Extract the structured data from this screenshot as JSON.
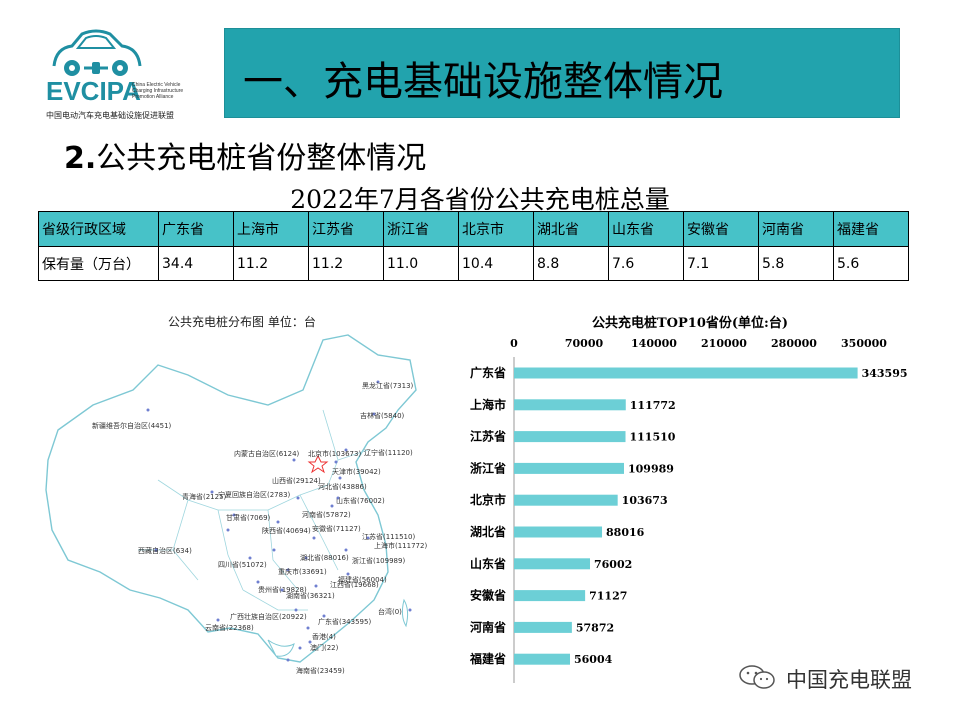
{
  "logo": {
    "name": "EVCIPA",
    "subtitle_lines": [
      "China Electric Vehicle",
      "Charging Infrastructure",
      "Promotion Alliance"
    ],
    "cn_name": "中国电动汽车充电基础设施促进联盟",
    "accent": "#1f8fa2"
  },
  "banner": {
    "title": "一、充电基础设施整体情况",
    "color": "#22a3ad"
  },
  "section": {
    "number": "2.",
    "title": "公共充电桩省份整体情况"
  },
  "table": {
    "title": "2022年7月各省份公共充电桩总量",
    "header_color": "#47c2c8",
    "row_label_1": "省级行政区域",
    "row_label_2": "保有量（万台）",
    "provinces": [
      "广东省",
      "上海市",
      "江苏省",
      "浙江省",
      "北京市",
      "湖北省",
      "山东省",
      "安徽省",
      "河南省",
      "福建省"
    ],
    "values": [
      "34.4",
      "11.2",
      "11.2",
      "11.0",
      "10.4",
      "8.8",
      "7.6",
      "7.1",
      "5.8",
      "5.6"
    ]
  },
  "map": {
    "title": "公共充电桩分布图  单位：台",
    "labels": [
      {
        "text": "新疆维吾尔自治区(4451)"
      },
      {
        "text": "西藏自治区(634)"
      },
      {
        "text": "青海省(2125)"
      },
      {
        "text": "甘肃省(7069)"
      },
      {
        "text": "内蒙古自治区(6124)"
      },
      {
        "text": "宁夏回族自治区(2783)"
      },
      {
        "text": "四川省(51072)"
      },
      {
        "text": "云南省(22368)"
      },
      {
        "text": "黑龙江省(7313)"
      },
      {
        "text": "吉林省(5840)"
      },
      {
        "text": "辽宁省(11120)"
      },
      {
        "text": "北京市(103673)"
      },
      {
        "text": "天津市(39042)"
      },
      {
        "text": "山西省(29124)"
      },
      {
        "text": "河北省(43886)"
      },
      {
        "text": "山东省(76002)"
      },
      {
        "text": "陕西省(40694)"
      },
      {
        "text": "河南省(57872)"
      },
      {
        "text": "安徽省(71127)"
      },
      {
        "text": "江苏省(111510)"
      },
      {
        "text": "上海市(111772)"
      },
      {
        "text": "湖北省(88016)"
      },
      {
        "text": "重庆市(33691)"
      },
      {
        "text": "浙江省(109989)"
      },
      {
        "text": "贵州省(19828)"
      },
      {
        "text": "湖南省(36321)"
      },
      {
        "text": "江西省(19668)"
      },
      {
        "text": "福建省(56004)"
      },
      {
        "text": "广西壮族自治区(20922)"
      },
      {
        "text": "广东省(343595)"
      },
      {
        "text": "香港(4)"
      },
      {
        "text": "澳门(22)"
      },
      {
        "text": "台湾(0)"
      },
      {
        "text": "海南省(23459)"
      }
    ]
  },
  "chart_data": {
    "type": "bar",
    "orientation": "horizontal",
    "title": "公共充电桩TOP10省份(单位:台)",
    "categories": [
      "广东省",
      "上海市",
      "江苏省",
      "浙江省",
      "北京市",
      "湖北省",
      "山东省",
      "安徽省",
      "河南省",
      "福建省"
    ],
    "values": [
      343595,
      111772,
      111510,
      109989,
      103673,
      88016,
      76002,
      71127,
      57872,
      56004
    ],
    "xticks": [
      0,
      70000,
      140000,
      210000,
      280000,
      350000
    ],
    "xlim": [
      0,
      350000
    ],
    "axis_position": "top",
    "bar_color": "#6ccfd6",
    "grid": false
  },
  "watermark": {
    "text": "中国充电联盟"
  }
}
